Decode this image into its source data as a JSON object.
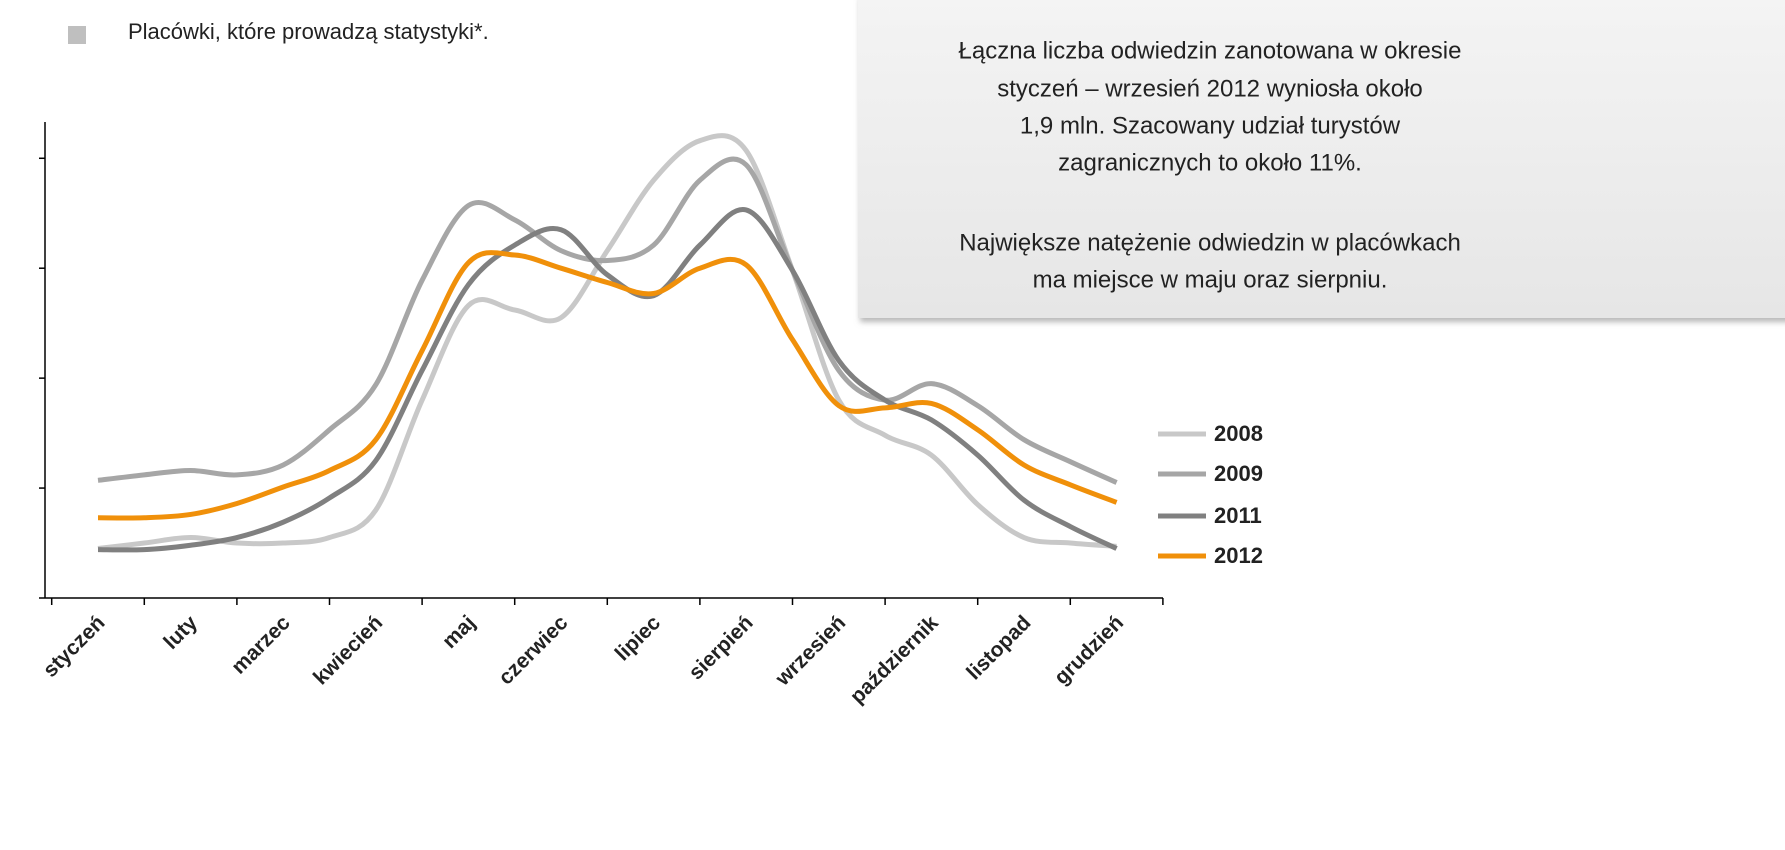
{
  "chart_data": {
    "type": "line",
    "note": "Placówki, które prowadzą statystyki*.",
    "textbox": [
      "Łączna liczba odwiedzin zanotowana w okresie",
      "styczeń – wrzesień 2012 wyniosła około",
      "1,9 mln. Szacowany udział turystów",
      "zagranicznych to około 11%.",
      "Największe natężenie odwiedzin w placówkach",
      "ma miejsce w maju oraz sierpniu."
    ],
    "categories": [
      "styczeń",
      null,
      "luty",
      null,
      "marzec",
      null,
      "kwiecień",
      null,
      "maj",
      null,
      "czerwiec",
      null,
      "lipiec",
      null,
      "sierpień",
      null,
      "wrzesień",
      null,
      "październik",
      null,
      "listopad",
      null,
      "grudzień"
    ],
    "series": [
      {
        "name": "2008",
        "color": "#c8c8c8",
        "values": [
          0.45,
          0.5,
          0.55,
          0.5,
          0.5,
          0.55,
          0.8,
          1.8,
          2.66,
          2.62,
          2.55,
          3.16,
          3.8,
          4.16,
          4.07,
          2.98,
          1.8,
          1.48,
          1.3,
          0.85,
          0.55,
          0.5,
          0.47
        ]
      },
      {
        "name": "2009",
        "color": "#a6a6a6",
        "values": [
          1.07,
          1.12,
          1.16,
          1.12,
          1.21,
          1.53,
          1.94,
          2.89,
          3.57,
          3.44,
          3.16,
          3.07,
          3.21,
          3.8,
          3.94,
          2.98,
          2.07,
          1.8,
          1.95,
          1.75,
          1.44,
          1.24,
          1.05
        ]
      },
      {
        "name": "2011",
        "color": "#808080",
        "values": [
          0.44,
          0.44,
          0.48,
          0.55,
          0.69,
          0.91,
          1.25,
          2.07,
          2.85,
          3.21,
          3.35,
          2.94,
          2.75,
          3.21,
          3.53,
          2.98,
          2.16,
          1.8,
          1.62,
          1.3,
          0.89,
          0.65,
          0.45
        ]
      },
      {
        "name": "2012",
        "color": "#f0900a",
        "values": [
          0.73,
          0.73,
          0.76,
          0.86,
          1.01,
          1.16,
          1.44,
          2.25,
          3.05,
          3.12,
          3.0,
          2.87,
          2.77,
          3.0,
          3.03,
          2.35,
          1.75,
          1.73,
          1.77,
          1.53,
          1.21,
          1.03,
          0.87
        ]
      }
    ],
    "ylim": [
      0,
      4.33
    ],
    "yticks": [
      0,
      1,
      2,
      3,
      4
    ]
  }
}
